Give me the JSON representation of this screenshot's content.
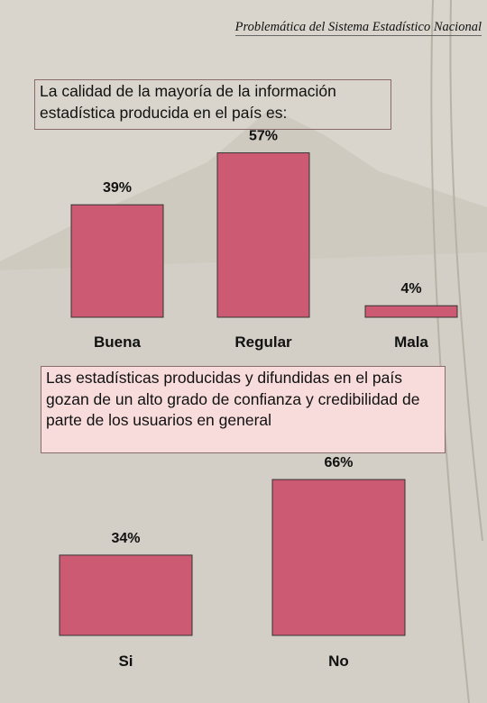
{
  "header": {
    "title": "Problemática del Sistema Estadístico Nacional"
  },
  "chart_data": [
    {
      "type": "bar",
      "title": "La calidad de la mayoría de la información estadística producida en el país es:",
      "categories": [
        "Buena",
        "Regular",
        "Mala"
      ],
      "values": [
        39,
        57,
        4
      ],
      "value_labels": [
        "39%",
        "57%",
        "4%"
      ],
      "color": "#cc5a72"
    },
    {
      "type": "bar",
      "title": "Las estadísticas producidas y difundidas en el país gozan de un alto grado de confianza y credibilidad de parte de los usuarios en general",
      "categories": [
        "Si",
        "No"
      ],
      "values": [
        34,
        66
      ],
      "value_labels": [
        "34%",
        "66%"
      ],
      "color": "#cc5a72"
    }
  ]
}
